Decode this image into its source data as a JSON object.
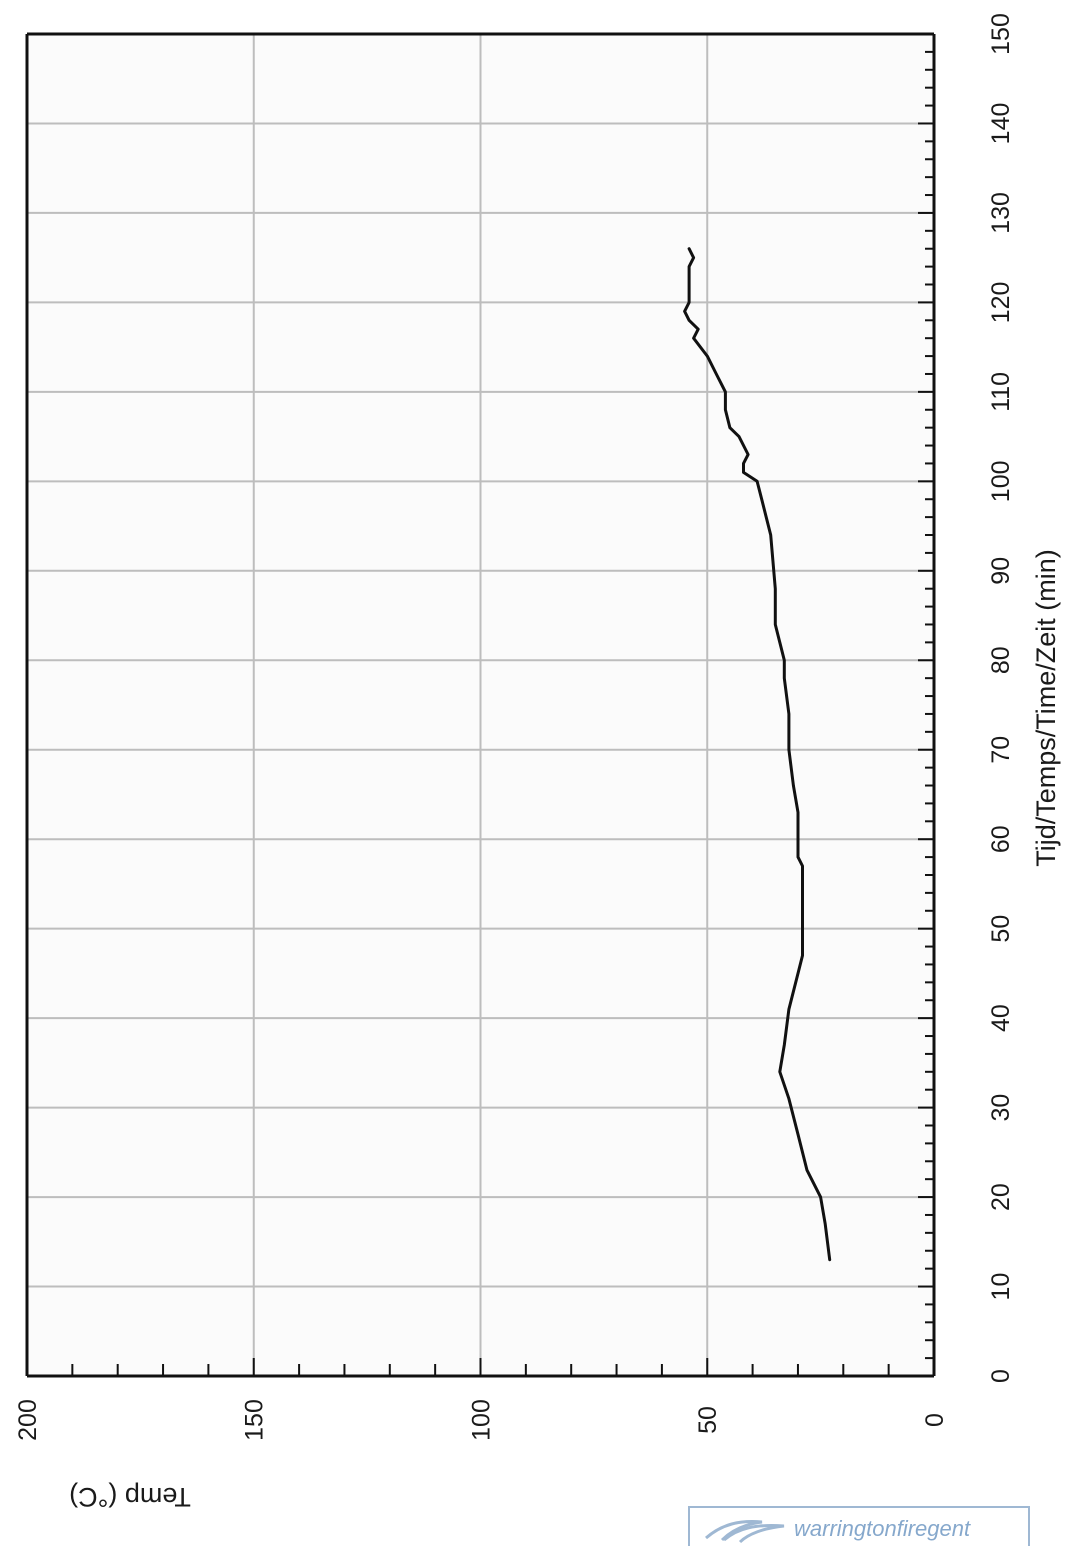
{
  "chart_data": {
    "type": "line",
    "orientation": "rotated-90",
    "xlabel": "Tijd/Temps/Time/Zeit (min)",
    "ylabel": "Temp (°C)",
    "xlim": [
      0,
      150
    ],
    "ylim": [
      0,
      200
    ],
    "x_ticks": [
      0,
      10,
      20,
      30,
      40,
      50,
      60,
      70,
      80,
      90,
      100,
      110,
      120,
      130,
      140,
      150
    ],
    "y_ticks": [
      0,
      50,
      100,
      150,
      200
    ],
    "grid": true,
    "series": [
      {
        "x": [
          13,
          17,
          20,
          23,
          27,
          31,
          34,
          37,
          41,
          45,
          47,
          50,
          53,
          57,
          58,
          60,
          63,
          66,
          70,
          74,
          78,
          80,
          82,
          84,
          88,
          94,
          96,
          98,
          100,
          101,
          102,
          103,
          105,
          106,
          108,
          110,
          112,
          114,
          116,
          117,
          118,
          119,
          120,
          121,
          122,
          124,
          125,
          126
        ],
        "y": [
          23,
          24,
          25,
          28,
          30,
          32,
          34,
          33,
          32,
          30,
          29,
          29,
          29,
          29,
          30,
          30,
          30,
          31,
          32,
          32,
          33,
          33,
          34,
          35,
          35,
          36,
          37,
          38,
          39,
          42,
          42,
          41,
          43,
          45,
          46,
          46,
          48,
          50,
          53,
          52,
          54,
          55,
          54,
          54,
          54,
          54,
          53,
          54
        ]
      }
    ]
  },
  "logo": {
    "text": "warringtonfiregent"
  }
}
